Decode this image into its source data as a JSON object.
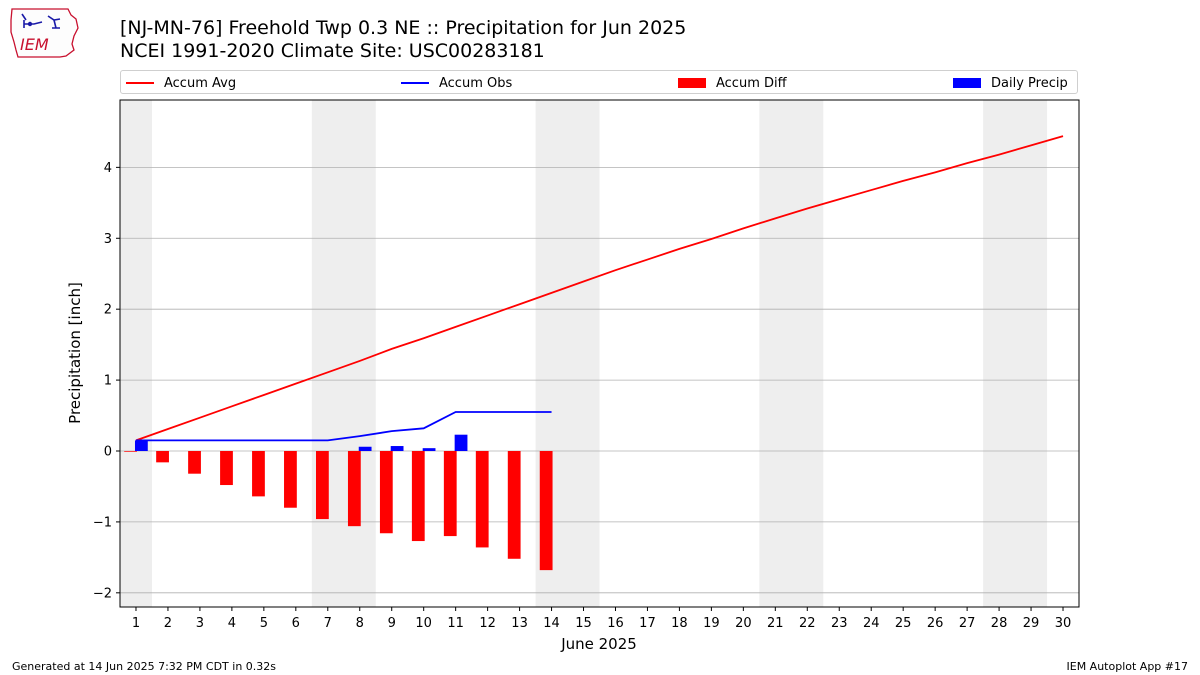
{
  "header": {
    "title_line1": "[NJ-MN-76] Freehold Twp 0.3 NE :: Precipitation for Jun 2025",
    "title_line2": "NCEI 1991-2020 Climate Site: USC00283181",
    "logo_text": "IEM"
  },
  "footer": {
    "generated": "Generated at 14 Jun 2025 7:32 PM CDT in 0.32s",
    "app": "IEM Autoplot App #17"
  },
  "colors": {
    "accum_avg": "#ff0000",
    "accum_obs": "#0000ff",
    "accum_diff": "#ff0000",
    "daily_precip": "#0000ff",
    "weekend_shade": "#eeeeee",
    "grid": "#b0b0b0"
  },
  "chart_data": {
    "type": "bar",
    "xlabel": "June 2025",
    "ylabel": "Precipitation [inch]",
    "xlim": [
      0.5,
      30.5
    ],
    "ylim": [
      -2.2,
      4.95
    ],
    "yticks": [
      4,
      3,
      2,
      1,
      0,
      -1,
      -2
    ],
    "ytick_labels": [
      "4",
      "3",
      "2",
      "1",
      "0",
      "−1",
      "−2"
    ],
    "x_ticks": [
      1,
      2,
      3,
      4,
      5,
      6,
      7,
      8,
      9,
      10,
      11,
      12,
      13,
      14,
      15,
      16,
      17,
      18,
      19,
      20,
      21,
      22,
      23,
      24,
      25,
      26,
      27,
      28,
      29,
      30
    ],
    "grid": "horizontal",
    "legend_position": "top",
    "weekend_ranges": [
      [
        0.5,
        1.5
      ],
      [
        6.5,
        8.5
      ],
      [
        13.5,
        15.5
      ],
      [
        20.5,
        22.5
      ],
      [
        27.5,
        29.5
      ]
    ],
    "legend": {
      "accum_avg": "Accum Avg",
      "accum_obs": "Accum Obs",
      "accum_diff": "Accum Diff",
      "daily_precip": "Daily Precip"
    },
    "series": [
      {
        "name": "Accum Avg",
        "type": "line",
        "x": [
          1,
          2,
          3,
          4,
          5,
          6,
          7,
          8,
          9,
          10,
          11,
          12,
          13,
          14,
          15,
          16,
          17,
          18,
          19,
          20,
          21,
          22,
          23,
          24,
          25,
          26,
          27,
          28,
          29,
          30
        ],
        "values": [
          0.15,
          0.31,
          0.47,
          0.63,
          0.79,
          0.95,
          1.11,
          1.27,
          1.44,
          1.59,
          1.75,
          1.91,
          2.07,
          2.23,
          2.39,
          2.55,
          2.7,
          2.85,
          2.99,
          3.14,
          3.28,
          3.42,
          3.55,
          3.68,
          3.81,
          3.93,
          4.06,
          4.18,
          4.31,
          4.44
        ]
      },
      {
        "name": "Accum Obs",
        "type": "line",
        "x": [
          1,
          2,
          3,
          4,
          5,
          6,
          7,
          8,
          9,
          10,
          11,
          12,
          13,
          14
        ],
        "values": [
          0.15,
          0.15,
          0.15,
          0.15,
          0.15,
          0.15,
          0.15,
          0.21,
          0.28,
          0.32,
          0.55,
          0.55,
          0.55,
          0.55
        ]
      },
      {
        "name": "Accum Diff",
        "type": "bar",
        "x": [
          1,
          2,
          3,
          4,
          5,
          6,
          7,
          8,
          9,
          10,
          11,
          12,
          13,
          14
        ],
        "values": [
          -0.01,
          -0.16,
          -0.32,
          -0.48,
          -0.64,
          -0.8,
          -0.96,
          -1.06,
          -1.16,
          -1.27,
          -1.2,
          -1.36,
          -1.52,
          -1.68
        ]
      },
      {
        "name": "Daily Precip",
        "type": "bar",
        "x": [
          1,
          2,
          3,
          4,
          5,
          6,
          7,
          8,
          9,
          10,
          11,
          12,
          13,
          14
        ],
        "values": [
          0.15,
          0,
          0,
          0,
          0,
          0,
          0,
          0.06,
          0.07,
          0.04,
          0.23,
          0,
          0,
          0
        ]
      }
    ]
  }
}
